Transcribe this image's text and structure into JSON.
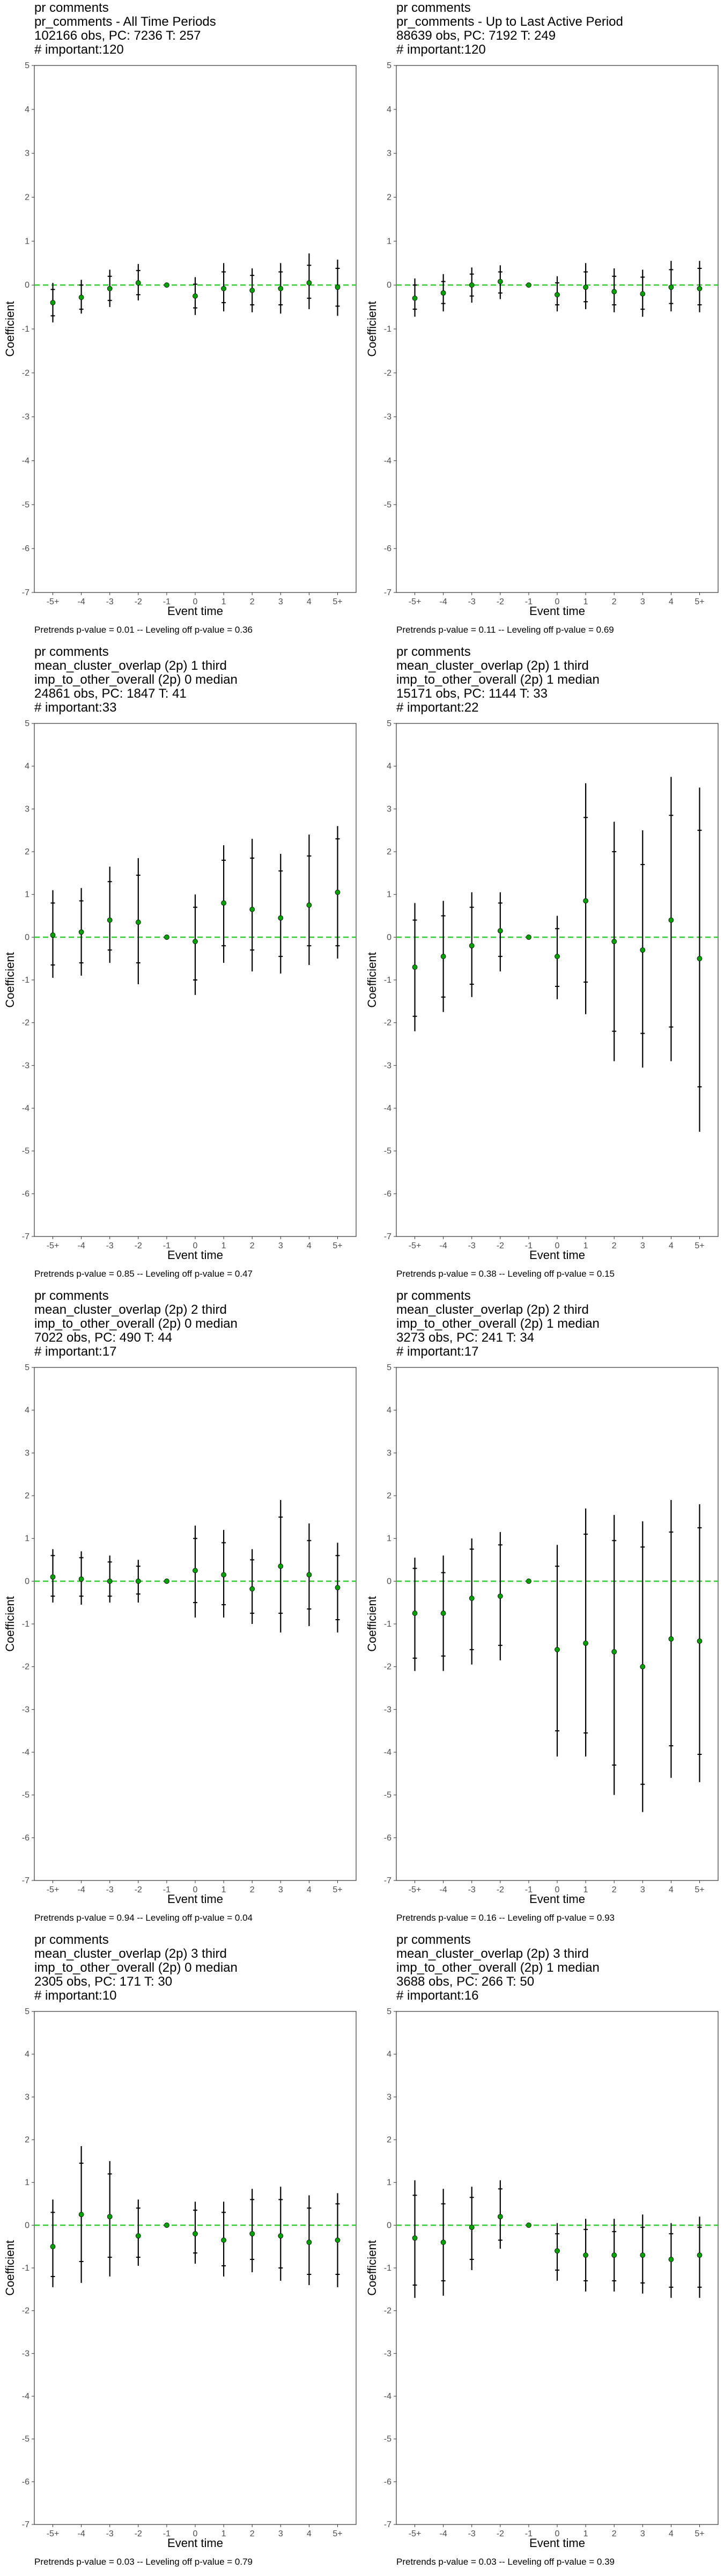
{
  "layout_note": "",
  "chart_data": [
    {
      "type": "scatter",
      "title_lines": [
        "pr comments",
        "pr_comments - All Time Periods",
        "102166 obs, PC: 7236 T: 257",
        "# important:120"
      ],
      "footer": "Pretrends p-value = 0.01 -- Leveling off p-value = 0.36",
      "xlabel": "Event time",
      "ylabel": "Coefficient",
      "x": [
        "-5+",
        "-4",
        "-3",
        "-2",
        "-1",
        "0",
        "1",
        "2",
        "3",
        "4",
        "5+"
      ],
      "estimate": [
        -0.4,
        -0.28,
        -0.08,
        0.05,
        0.0,
        -0.25,
        -0.08,
        -0.12,
        -0.08,
        0.05,
        -0.05
      ],
      "ci_inner": [
        [
          -0.7,
          -0.1
        ],
        [
          -0.55,
          0.0
        ],
        [
          -0.35,
          0.2
        ],
        [
          -0.22,
          0.33
        ],
        [
          0.0,
          0.0
        ],
        [
          -0.52,
          0.02
        ],
        [
          -0.4,
          0.3
        ],
        [
          -0.45,
          0.22
        ],
        [
          -0.45,
          0.3
        ],
        [
          -0.3,
          0.45
        ],
        [
          -0.48,
          0.38
        ]
      ],
      "ci_outer": [
        [
          -0.85,
          0.05
        ],
        [
          -0.65,
          0.12
        ],
        [
          -0.5,
          0.35
        ],
        [
          -0.35,
          0.48
        ],
        [
          0.0,
          0.0
        ],
        [
          -0.68,
          0.18
        ],
        [
          -0.6,
          0.5
        ],
        [
          -0.62,
          0.38
        ],
        [
          -0.65,
          0.5
        ],
        [
          -0.55,
          0.72
        ],
        [
          -0.7,
          0.58
        ]
      ],
      "reference_line": 0,
      "ylim": [
        -7,
        5
      ],
      "yticks": [
        -7,
        -6,
        -5,
        -4,
        -3,
        -2,
        -1,
        0,
        1,
        2,
        3,
        4,
        5
      ],
      "grid": false,
      "point_color": "#00a000",
      "reference_color": "#33cc33"
    },
    {
      "type": "scatter",
      "title_lines": [
        "pr comments",
        "pr_comments - Up to Last Active Period",
        "88639 obs, PC: 7192 T: 249",
        "# important:120"
      ],
      "footer": "Pretrends p-value = 0.11 -- Leveling off p-value = 0.69",
      "xlabel": "Event time",
      "ylabel": "Coefficient",
      "x": [
        "-5+",
        "-4",
        "-3",
        "-2",
        "-1",
        "0",
        "1",
        "2",
        "3",
        "4",
        "5+"
      ],
      "estimate": [
        -0.3,
        -0.18,
        0.0,
        0.08,
        0.0,
        -0.22,
        -0.05,
        -0.15,
        -0.2,
        -0.05,
        -0.08
      ],
      "ci_inner": [
        [
          -0.55,
          0.0
        ],
        [
          -0.42,
          0.08
        ],
        [
          -0.25,
          0.25
        ],
        [
          -0.18,
          0.3
        ],
        [
          0.0,
          0.0
        ],
        [
          -0.45,
          0.05
        ],
        [
          -0.38,
          0.3
        ],
        [
          -0.45,
          0.2
        ],
        [
          -0.55,
          0.18
        ],
        [
          -0.42,
          0.35
        ],
        [
          -0.45,
          0.38
        ]
      ],
      "ci_outer": [
        [
          -0.72,
          0.15
        ],
        [
          -0.6,
          0.25
        ],
        [
          -0.4,
          0.4
        ],
        [
          -0.32,
          0.45
        ],
        [
          0.0,
          0.0
        ],
        [
          -0.6,
          0.2
        ],
        [
          -0.55,
          0.5
        ],
        [
          -0.62,
          0.38
        ],
        [
          -0.72,
          0.35
        ],
        [
          -0.6,
          0.55
        ],
        [
          -0.62,
          0.55
        ]
      ],
      "reference_line": 0,
      "ylim": [
        -7,
        5
      ],
      "yticks": [
        -7,
        -6,
        -5,
        -4,
        -3,
        -2,
        -1,
        0,
        1,
        2,
        3,
        4,
        5
      ],
      "grid": false,
      "point_color": "#00a000",
      "reference_color": "#33cc33"
    },
    {
      "type": "scatter",
      "title_lines": [
        "pr comments",
        "mean_cluster_overlap (2p) 1 third",
        "imp_to_other_overall (2p) 0 median",
        "24861 obs, PC: 1847 T: 41",
        "# important:33"
      ],
      "footer": "Pretrends p-value = 0.85 -- Leveling off p-value = 0.47",
      "xlabel": "Event time",
      "ylabel": "Coefficient",
      "x": [
        "-5+",
        "-4",
        "-3",
        "-2",
        "-1",
        "0",
        "1",
        "2",
        "3",
        "4",
        "5+"
      ],
      "estimate": [
        0.05,
        0.12,
        0.4,
        0.35,
        0.0,
        -0.1,
        0.8,
        0.65,
        0.45,
        0.75,
        1.05
      ],
      "ci_inner": [
        [
          -0.65,
          0.8
        ],
        [
          -0.6,
          0.85
        ],
        [
          -0.3,
          1.3
        ],
        [
          -0.6,
          1.45
        ],
        [
          0.0,
          0.0
        ],
        [
          -1.0,
          0.7
        ],
        [
          -0.2,
          1.8
        ],
        [
          -0.3,
          1.85
        ],
        [
          -0.45,
          1.55
        ],
        [
          -0.2,
          1.9
        ],
        [
          -0.2,
          2.3
        ]
      ],
      "ci_outer": [
        [
          -0.95,
          1.1
        ],
        [
          -0.9,
          1.15
        ],
        [
          -0.6,
          1.65
        ],
        [
          -1.1,
          1.85
        ],
        [
          0.0,
          0.0
        ],
        [
          -1.35,
          1.0
        ],
        [
          -0.6,
          2.15
        ],
        [
          -0.8,
          2.3
        ],
        [
          -0.85,
          1.95
        ],
        [
          -0.65,
          2.4
        ],
        [
          -0.5,
          2.6
        ]
      ],
      "reference_line": 0,
      "ylim": [
        -7,
        5
      ],
      "yticks": [
        -7,
        -6,
        -5,
        -4,
        -3,
        -2,
        -1,
        0,
        1,
        2,
        3,
        4,
        5
      ],
      "grid": false,
      "point_color": "#00a000",
      "reference_color": "#33cc33"
    },
    {
      "type": "scatter",
      "title_lines": [
        "pr comments",
        "mean_cluster_overlap (2p) 1 third",
        "imp_to_other_overall (2p) 1 median",
        "15171 obs, PC: 1144 T: 33",
        "# important:22"
      ],
      "footer": "Pretrends p-value = 0.38 -- Leveling off p-value = 0.15",
      "xlabel": "Event time",
      "ylabel": "Coefficient",
      "x": [
        "-5+",
        "-4",
        "-3",
        "-2",
        "-1",
        "0",
        "1",
        "2",
        "3",
        "4",
        "5+"
      ],
      "estimate": [
        -0.7,
        -0.45,
        -0.2,
        0.15,
        0.0,
        -0.45,
        0.85,
        -0.1,
        -0.3,
        0.4,
        -0.5
      ],
      "ci_inner": [
        [
          -1.85,
          0.4
        ],
        [
          -1.4,
          0.5
        ],
        [
          -1.1,
          0.7
        ],
        [
          -0.45,
          0.8
        ],
        [
          0.0,
          0.0
        ],
        [
          -1.15,
          0.2
        ],
        [
          -1.05,
          2.8
        ],
        [
          -2.2,
          2.0
        ],
        [
          -2.25,
          1.7
        ],
        [
          -2.1,
          2.85
        ],
        [
          -3.5,
          2.5
        ]
      ],
      "ci_outer": [
        [
          -2.2,
          0.8
        ],
        [
          -1.75,
          0.85
        ],
        [
          -1.4,
          1.05
        ],
        [
          -0.8,
          1.05
        ],
        [
          0.0,
          0.0
        ],
        [
          -1.45,
          0.5
        ],
        [
          -1.8,
          3.6
        ],
        [
          -2.9,
          2.7
        ],
        [
          -3.05,
          2.5
        ],
        [
          -2.9,
          3.75
        ],
        [
          -4.55,
          3.5
        ]
      ],
      "reference_line": 0,
      "ylim": [
        -7,
        5
      ],
      "yticks": [
        -7,
        -6,
        -5,
        -4,
        -3,
        -2,
        -1,
        0,
        1,
        2,
        3,
        4,
        5
      ],
      "grid": false,
      "point_color": "#00a000",
      "reference_color": "#33cc33"
    },
    {
      "type": "scatter",
      "title_lines": [
        "pr comments",
        "mean_cluster_overlap (2p) 2 third",
        "imp_to_other_overall (2p) 0 median",
        "7022 obs, PC: 490 T: 44",
        "# important:17"
      ],
      "footer": "Pretrends p-value = 0.94 -- Leveling off p-value = 0.04",
      "xlabel": "Event time",
      "ylabel": "Coefficient",
      "x": [
        "-5+",
        "-4",
        "-3",
        "-2",
        "-1",
        "0",
        "1",
        "2",
        "3",
        "4",
        "5+"
      ],
      "estimate": [
        0.1,
        0.05,
        0.0,
        0.0,
        0.0,
        0.25,
        0.15,
        -0.18,
        0.35,
        0.15,
        -0.15
      ],
      "ci_inner": [
        [
          -0.35,
          0.6
        ],
        [
          -0.35,
          0.55
        ],
        [
          -0.35,
          0.45
        ],
        [
          -0.3,
          0.35
        ],
        [
          0.0,
          0.0
        ],
        [
          -0.5,
          1.0
        ],
        [
          -0.55,
          0.9
        ],
        [
          -0.75,
          0.5
        ],
        [
          -0.75,
          1.5
        ],
        [
          -0.65,
          0.95
        ],
        [
          -0.9,
          0.6
        ]
      ],
      "ci_outer": [
        [
          -0.5,
          0.75
        ],
        [
          -0.55,
          0.7
        ],
        [
          -0.5,
          0.6
        ],
        [
          -0.5,
          0.5
        ],
        [
          0.0,
          0.0
        ],
        [
          -0.85,
          1.3
        ],
        [
          -0.85,
          1.2
        ],
        [
          -1.0,
          0.75
        ],
        [
          -1.2,
          1.9
        ],
        [
          -1.05,
          1.35
        ],
        [
          -1.2,
          0.9
        ]
      ],
      "reference_line": 0,
      "ylim": [
        -7,
        5
      ],
      "yticks": [
        -7,
        -6,
        -5,
        -4,
        -3,
        -2,
        -1,
        0,
        1,
        2,
        3,
        4,
        5
      ],
      "grid": false,
      "point_color": "#00a000",
      "reference_color": "#33cc33"
    },
    {
      "type": "scatter",
      "title_lines": [
        "pr comments",
        "mean_cluster_overlap (2p) 2 third",
        "imp_to_other_overall (2p) 1 median",
        "3273 obs, PC: 241 T: 34",
        "# important:17"
      ],
      "footer": "Pretrends p-value = 0.16 -- Leveling off p-value = 0.93",
      "xlabel": "Event time",
      "ylabel": "Coefficient",
      "x": [
        "-5+",
        "-4",
        "-3",
        "-2",
        "-1",
        "0",
        "1",
        "2",
        "3",
        "4",
        "5+"
      ],
      "estimate": [
        -0.75,
        -0.75,
        -0.4,
        -0.35,
        0.0,
        -1.6,
        -1.45,
        -1.65,
        -2.0,
        -1.35,
        -1.4
      ],
      "ci_inner": [
        [
          -1.8,
          0.3
        ],
        [
          -1.75,
          0.2
        ],
        [
          -1.6,
          0.75
        ],
        [
          -1.5,
          0.85
        ],
        [
          0.0,
          0.0
        ],
        [
          -3.5,
          0.35
        ],
        [
          -3.55,
          1.1
        ],
        [
          -4.3,
          0.95
        ],
        [
          -4.75,
          0.8
        ],
        [
          -3.85,
          1.15
        ],
        [
          -4.05,
          1.25
        ]
      ],
      "ci_outer": [
        [
          -2.1,
          0.55
        ],
        [
          -2.1,
          0.6
        ],
        [
          -1.95,
          1.0
        ],
        [
          -1.85,
          1.15
        ],
        [
          0.0,
          0.0
        ],
        [
          -4.1,
          0.85
        ],
        [
          -4.1,
          1.7
        ],
        [
          -5.0,
          1.55
        ],
        [
          -5.4,
          1.4
        ],
        [
          -4.6,
          1.9
        ],
        [
          -4.7,
          1.8
        ]
      ],
      "reference_line": 0,
      "ylim": [
        -7,
        5
      ],
      "yticks": [
        -7,
        -6,
        -5,
        -4,
        -3,
        -2,
        -1,
        0,
        1,
        2,
        3,
        4,
        5
      ],
      "grid": false,
      "point_color": "#00a000",
      "reference_color": "#33cc33"
    },
    {
      "type": "scatter",
      "title_lines": [
        "pr comments",
        "mean_cluster_overlap (2p) 3 third",
        "imp_to_other_overall (2p) 0 median",
        "2305 obs, PC: 171 T: 30",
        "# important:10"
      ],
      "footer": "Pretrends p-value = 0.03 -- Leveling off p-value = 0.79",
      "xlabel": "Event time",
      "ylabel": "Coefficient",
      "x": [
        "-5+",
        "-4",
        "-3",
        "-2",
        "-1",
        "0",
        "1",
        "2",
        "3",
        "4",
        "5+"
      ],
      "estimate": [
        -0.5,
        0.25,
        0.2,
        -0.25,
        0.0,
        -0.2,
        -0.35,
        -0.2,
        -0.25,
        -0.4,
        -0.35
      ],
      "ci_inner": [
        [
          -1.2,
          0.3
        ],
        [
          -0.85,
          1.45
        ],
        [
          -0.75,
          1.2
        ],
        [
          -0.75,
          0.4
        ],
        [
          0.0,
          0.0
        ],
        [
          -0.65,
          0.35
        ],
        [
          -0.95,
          0.3
        ],
        [
          -0.8,
          0.6
        ],
        [
          -1.0,
          0.6
        ],
        [
          -1.15,
          0.4
        ],
        [
          -1.15,
          0.5
        ]
      ],
      "ci_outer": [
        [
          -1.45,
          0.6
        ],
        [
          -1.35,
          1.85
        ],
        [
          -1.2,
          1.5
        ],
        [
          -0.95,
          0.6
        ],
        [
          0.0,
          0.0
        ],
        [
          -0.9,
          0.55
        ],
        [
          -1.2,
          0.55
        ],
        [
          -1.1,
          0.85
        ],
        [
          -1.3,
          0.9
        ],
        [
          -1.4,
          0.7
        ],
        [
          -1.45,
          0.75
        ]
      ],
      "reference_line": 0,
      "ylim": [
        -7,
        5
      ],
      "yticks": [
        -7,
        -6,
        -5,
        -4,
        -3,
        -2,
        -1,
        0,
        1,
        2,
        3,
        4,
        5
      ],
      "grid": false,
      "point_color": "#00a000",
      "reference_color": "#33cc33"
    },
    {
      "type": "scatter",
      "title_lines": [
        "pr comments",
        "mean_cluster_overlap (2p) 3 third",
        "imp_to_other_overall (2p) 1 median",
        "3688 obs, PC: 266 T: 50",
        "# important:16"
      ],
      "footer": "Pretrends p-value = 0.03 -- Leveling off p-value = 0.39",
      "xlabel": "Event time",
      "ylabel": "Coefficient",
      "x": [
        "-5+",
        "-4",
        "-3",
        "-2",
        "-1",
        "0",
        "1",
        "2",
        "3",
        "4",
        "5+"
      ],
      "estimate": [
        -0.3,
        -0.4,
        -0.05,
        0.2,
        0.0,
        -0.6,
        -0.7,
        -0.7,
        -0.7,
        -0.8,
        -0.7
      ],
      "ci_inner": [
        [
          -1.4,
          0.7
        ],
        [
          -1.3,
          0.5
        ],
        [
          -0.8,
          0.65
        ],
        [
          -0.35,
          0.85
        ],
        [
          0.0,
          0.0
        ],
        [
          -1.05,
          -0.2
        ],
        [
          -1.3,
          -0.1
        ],
        [
          -1.3,
          -0.15
        ],
        [
          -1.35,
          -0.05
        ],
        [
          -1.45,
          -0.2
        ],
        [
          -1.45,
          -0.05
        ]
      ],
      "ci_outer": [
        [
          -1.7,
          1.05
        ],
        [
          -1.65,
          0.85
        ],
        [
          -1.05,
          0.9
        ],
        [
          -0.55,
          1.05
        ],
        [
          0.0,
          0.0
        ],
        [
          -1.3,
          0.05
        ],
        [
          -1.55,
          0.15
        ],
        [
          -1.55,
          0.15
        ],
        [
          -1.6,
          0.25
        ],
        [
          -1.7,
          0.05
        ],
        [
          -1.7,
          0.2
        ]
      ],
      "reference_line": 0,
      "ylim": [
        -7,
        5
      ],
      "yticks": [
        -7,
        -6,
        -5,
        -4,
        -3,
        -2,
        -1,
        0,
        1,
        2,
        3,
        4,
        5
      ],
      "grid": false,
      "point_color": "#00a000",
      "reference_color": "#33cc33"
    }
  ]
}
